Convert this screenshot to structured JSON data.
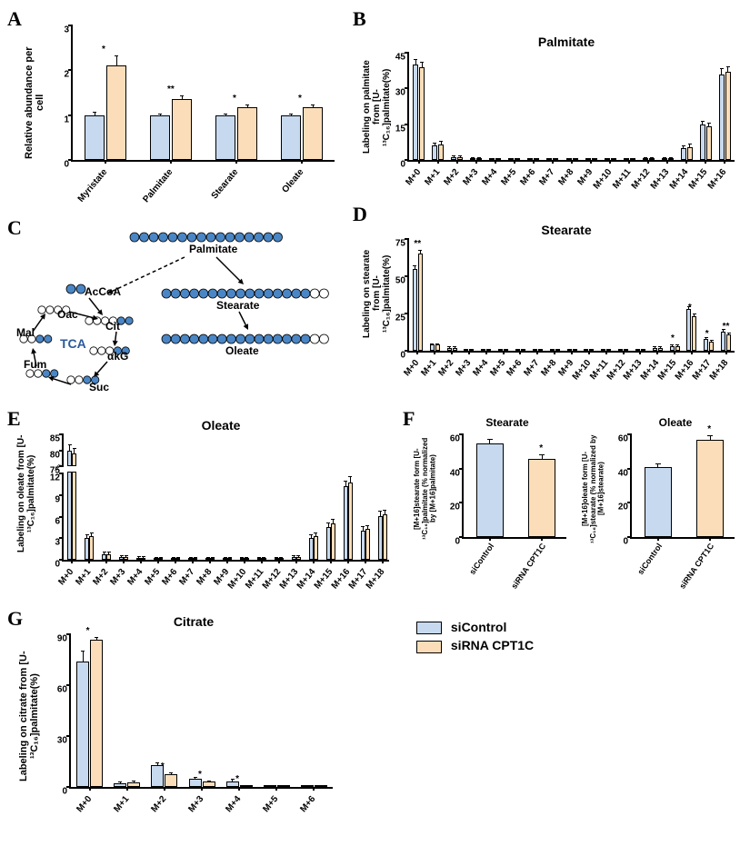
{
  "colors": {
    "siControl": "#c7d9ee",
    "siCPT1C": "#fbdeb9",
    "stroke": "#000000",
    "background": "#ffffff",
    "tcaFill": "#4a86c5",
    "tcaText": "#2b5a9a"
  },
  "legend": {
    "items": [
      {
        "label": "siControl",
        "colorKey": "siControl"
      },
      {
        "label": "siRNA CPT1C",
        "colorKey": "siCPT1C"
      }
    ]
  },
  "panelA": {
    "label": "A",
    "ylabel": "Relative abundance per cell",
    "ylim": [
      0,
      3
    ],
    "yticks": [
      0,
      1,
      2,
      3
    ],
    "categories": [
      "Myristate",
      "Palmitate",
      "Stearate",
      "Oleate"
    ],
    "series": [
      {
        "name": "siControl",
        "colorKey": "siControl",
        "values": [
          1.0,
          1.0,
          1.0,
          1.0
        ],
        "err": [
          0.05,
          0.02,
          0.02,
          0.02
        ]
      },
      {
        "name": "siRNA CPT1C",
        "colorKey": "siCPT1C",
        "values": [
          2.1,
          1.35,
          1.18,
          1.18
        ],
        "err": [
          0.22,
          0.06,
          0.04,
          0.04
        ]
      }
    ],
    "sig": [
      "*",
      "**",
      "*",
      "*"
    ],
    "bar_width": 0.35
  },
  "panelB": {
    "label": "B",
    "title": "Palmitate",
    "ylabel": "Labeling on palmitate from\n[U-¹³C₁₆]palmitate(%)",
    "ylim": [
      0,
      45
    ],
    "yticks": [
      0,
      15,
      30,
      45
    ],
    "categories": [
      "M+0",
      "M+1",
      "M+2",
      "M+3",
      "M+4",
      "M+5",
      "M+6",
      "M+7",
      "M+8",
      "M+9",
      "M+10",
      "M+11",
      "M+12",
      "M+13",
      "M+14",
      "M+15",
      "M+16"
    ],
    "series": [
      {
        "name": "siControl",
        "colorKey": "siControl",
        "values": [
          40,
          6,
          1,
          0.5,
          0.3,
          0.3,
          0.3,
          0.3,
          0.3,
          0.3,
          0.3,
          0.3,
          0.5,
          0.5,
          5,
          15,
          36
        ],
        "err": [
          2,
          1,
          0.4,
          0.2,
          0.1,
          0.1,
          0.1,
          0.1,
          0.1,
          0.1,
          0.1,
          0.1,
          0.2,
          0.2,
          0.8,
          1,
          2
        ]
      },
      {
        "name": "siRNA CPT1C",
        "colorKey": "siCPT1C",
        "values": [
          39,
          6.5,
          1.2,
          0.5,
          0.3,
          0.3,
          0.3,
          0.3,
          0.3,
          0.3,
          0.3,
          0.3,
          0.5,
          0.5,
          5.5,
          14,
          37
        ],
        "err": [
          2,
          1,
          0.5,
          0.2,
          0.1,
          0.1,
          0.1,
          0.1,
          0.1,
          0.1,
          0.1,
          0.1,
          0.2,
          0.2,
          0.8,
          1.2,
          2
        ]
      }
    ]
  },
  "panelD": {
    "label": "D",
    "title": "Stearate",
    "ylabel": "Labeling on stearate from\n[U-¹³C₁₆]palmitate(%)",
    "ylim": [
      0,
      75
    ],
    "yticks": [
      0,
      25,
      50,
      75
    ],
    "categories": [
      "M+0",
      "M+1",
      "M+2",
      "M+3",
      "M+4",
      "M+5",
      "M+6",
      "M+7",
      "M+8",
      "M+9",
      "M+10",
      "M+11",
      "M+12",
      "M+13",
      "M+14",
      "M+15",
      "M+16",
      "M+17",
      "M+18"
    ],
    "series": [
      {
        "name": "siControl",
        "colorKey": "siControl",
        "values": [
          55,
          4,
          2,
          0.5,
          0.3,
          0.3,
          0.3,
          0.3,
          0.3,
          0.3,
          0.3,
          0.3,
          0.3,
          0.3,
          2,
          3,
          28,
          8,
          13
        ],
        "err": [
          2,
          0.5,
          0.4,
          0.2,
          0.1,
          0.1,
          0.1,
          0.1,
          0.1,
          0.1,
          0.1,
          0.1,
          0.1,
          0.1,
          0.4,
          0.4,
          1.5,
          0.6,
          1
        ]
      },
      {
        "name": "siRNA CPT1C",
        "colorKey": "siCPT1C",
        "values": [
          65,
          4,
          2,
          0.5,
          0.3,
          0.3,
          0.3,
          0.3,
          0.3,
          0.3,
          0.3,
          0.3,
          0.3,
          0.3,
          2,
          3,
          23,
          6,
          11
        ],
        "err": [
          2,
          0.5,
          0.4,
          0.2,
          0.1,
          0.1,
          0.1,
          0.1,
          0.1,
          0.1,
          0.1,
          0.1,
          0.1,
          0.1,
          0.4,
          0.4,
          1.2,
          0.5,
          0.8
        ]
      }
    ],
    "sig": {
      "0": "**",
      "15": "*",
      "16": "*",
      "17": "*",
      "18": "**"
    }
  },
  "panelE": {
    "label": "E",
    "title": "Oleate",
    "ylabel": "Labeling on oleate from\n[U-¹³C₁₆]palmitate(%)",
    "categories": [
      "M+0",
      "M+1",
      "M+2",
      "M+3",
      "M+4",
      "M+5",
      "M+6",
      "M+7",
      "M+8",
      "M+9",
      "M+10",
      "M+11",
      "M+12",
      "M+13",
      "M+14",
      "M+15",
      "M+16",
      "M+17",
      "M+18"
    ],
    "broken": true,
    "ylim_lower": [
      0,
      12
    ],
    "ylim_upper": [
      75,
      85
    ],
    "yticks_lower": [
      0,
      3,
      6,
      9,
      12
    ],
    "yticks_upper": [
      75,
      80,
      85
    ],
    "series": [
      {
        "name": "siControl",
        "colorKey": "siControl",
        "values": [
          80,
          3,
          0.8,
          0.4,
          0.3,
          0.2,
          0.2,
          0.2,
          0.2,
          0.2,
          0.2,
          0.2,
          0.2,
          0.4,
          3,
          4.5,
          10,
          4,
          6
        ],
        "err": [
          1.5,
          0.4,
          0.2,
          0.1,
          0.1,
          0.1,
          0.1,
          0.1,
          0.1,
          0.1,
          0.1,
          0.1,
          0.1,
          0.1,
          0.4,
          0.5,
          0.7,
          0.4,
          0.5
        ]
      },
      {
        "name": "siRNA CPT1C",
        "colorKey": "siCPT1C",
        "values": [
          79,
          3.2,
          0.8,
          0.4,
          0.3,
          0.2,
          0.2,
          0.2,
          0.2,
          0.2,
          0.2,
          0.2,
          0.2,
          0.4,
          3.2,
          5,
          10.5,
          4.2,
          6.2
        ],
        "err": [
          1.5,
          0.4,
          0.2,
          0.1,
          0.1,
          0.1,
          0.1,
          0.1,
          0.1,
          0.1,
          0.1,
          0.1,
          0.1,
          0.1,
          0.4,
          0.5,
          0.7,
          0.4,
          0.5
        ]
      }
    ]
  },
  "panelG": {
    "label": "G",
    "title": "Citrate",
    "ylabel": "Labeling on citrate from\n[U-¹³C₁₆]palmitate(%)",
    "ylim": [
      0,
      90
    ],
    "yticks": [
      0,
      30,
      60,
      90
    ],
    "categories": [
      "M+0",
      "M+1",
      "M+2",
      "M+3",
      "M+4",
      "M+5",
      "M+6"
    ],
    "series": [
      {
        "name": "siControl",
        "colorKey": "siControl",
        "values": [
          74,
          2,
          13,
          5,
          3,
          0.5,
          0.3
        ],
        "err": [
          6,
          0.5,
          1,
          0.5,
          1.2,
          0.2,
          0.1
        ]
      },
      {
        "name": "siRNA CPT1C",
        "colorKey": "siCPT1C",
        "values": [
          87,
          2.5,
          7.5,
          3,
          0.5,
          0.2,
          0.2
        ],
        "err": [
          1,
          0.5,
          0.8,
          0.4,
          0.2,
          0.1,
          0.1
        ]
      }
    ],
    "sig": {
      "0": "*",
      "2": "*",
      "3": "*",
      "4": "*"
    }
  },
  "panelF": {
    "label": "F",
    "subcharts": [
      {
        "title": "Stearate",
        "ylabel": "[M+16]stearate\nform [U-¹³C₁₆]palmitate\n(% normalized by [M+16]palmitate)",
        "ylim": [
          0,
          60
        ],
        "yticks": [
          0,
          20,
          40,
          60
        ],
        "categories": [
          "siControl",
          "siRNA CPT1C"
        ],
        "values": [
          54,
          45
        ],
        "err": [
          2,
          2
        ],
        "colorKeys": [
          "siControl",
          "siCPT1C"
        ],
        "sig": {
          "1": "*"
        }
      },
      {
        "title": "Oleate",
        "ylabel": "[M+16]oleate form\n[U-¹³C₁₆]stearate\n(% normalized by [M+16]stearate)",
        "ylim": [
          0,
          60
        ],
        "yticks": [
          0,
          20,
          40,
          60
        ],
        "categories": [
          "siControl",
          "siRNA CPT1C"
        ],
        "values": [
          40,
          56
        ],
        "err": [
          2,
          2
        ],
        "colorKeys": [
          "siControl",
          "siCPT1C"
        ],
        "sig": {
          "1": "*"
        }
      }
    ]
  },
  "panelC": {
    "label": "C",
    "entities": {
      "Palmitate": {
        "carbons": 16,
        "labeled": 16
      },
      "Stearate": {
        "carbons": 18,
        "labeled_indices": "0-15"
      },
      "Oleate": {
        "carbons": 18,
        "labeled_indices": "0-15"
      },
      "AcCoA": {
        "carbons": 2,
        "labeled": 2
      },
      "Cit": {
        "carbons": 6
      },
      "aKG": {
        "carbons": 5
      },
      "Suc": {
        "carbons": 4
      },
      "Fum": {
        "carbons": 4
      },
      "Mal": {
        "carbons": 4
      },
      "Oac": {
        "carbons": 4
      }
    },
    "tca_label": "TCA"
  }
}
